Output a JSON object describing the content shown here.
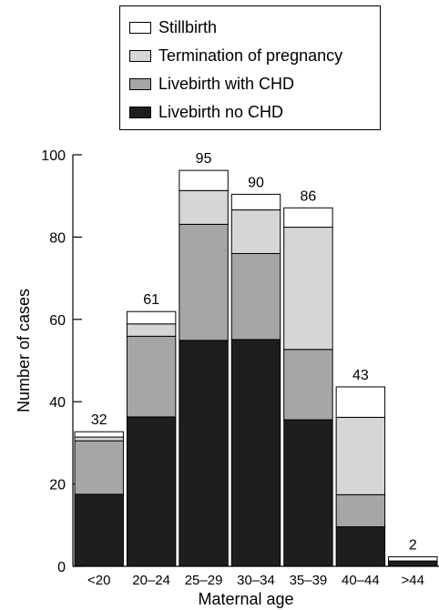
{
  "chart_data": {
    "type": "bar",
    "stacked": true,
    "categories": [
      "<20",
      "20–24",
      "25–29",
      "30–34",
      "35–39",
      "40–44",
      ">44"
    ],
    "series": [
      {
        "name": "Livebirth no CHD",
        "color": "#1e1e1e",
        "values": [
          17.5,
          36.3,
          54.9,
          55.1,
          35.6,
          9.6,
          1.3
        ]
      },
      {
        "name": "Livebirth with CHD",
        "color": "#a6a6a6",
        "values": [
          13,
          19.6,
          28.2,
          20.9,
          17.1,
          7.8,
          0
        ]
      },
      {
        "name": "Termination of pregnancy",
        "color": "#d6d6d6",
        "values": [
          0.9,
          3,
          8.2,
          10.6,
          29.7,
          18.8,
          0
        ]
      },
      {
        "name": "Stillbirth",
        "color": "#ffffff",
        "values": [
          1.3,
          3,
          4.9,
          3.8,
          4.7,
          7.4,
          1
        ]
      }
    ],
    "totals": [
      "32",
      "61",
      "95",
      "90",
      "86",
      "43",
      "2"
    ],
    "xlabel": "Maternal age",
    "ylabel": "Number of cases",
    "ylim": [
      0,
      100
    ],
    "yticks": [
      0,
      20,
      40,
      60,
      80,
      100
    ],
    "ytick_labels": [
      "0",
      "20",
      "40",
      "60",
      "80",
      "100"
    ],
    "legend_position": "top",
    "grid": false
  },
  "legend": {
    "items": [
      {
        "label": "Stillbirth",
        "color": "#ffffff"
      },
      {
        "label": "Termination of pregnancy",
        "color": "#d6d6d6"
      },
      {
        "label": "Livebirth with CHD",
        "color": "#a6a6a6"
      },
      {
        "label": "Livebirth no CHD",
        "color": "#1e1e1e"
      }
    ]
  }
}
